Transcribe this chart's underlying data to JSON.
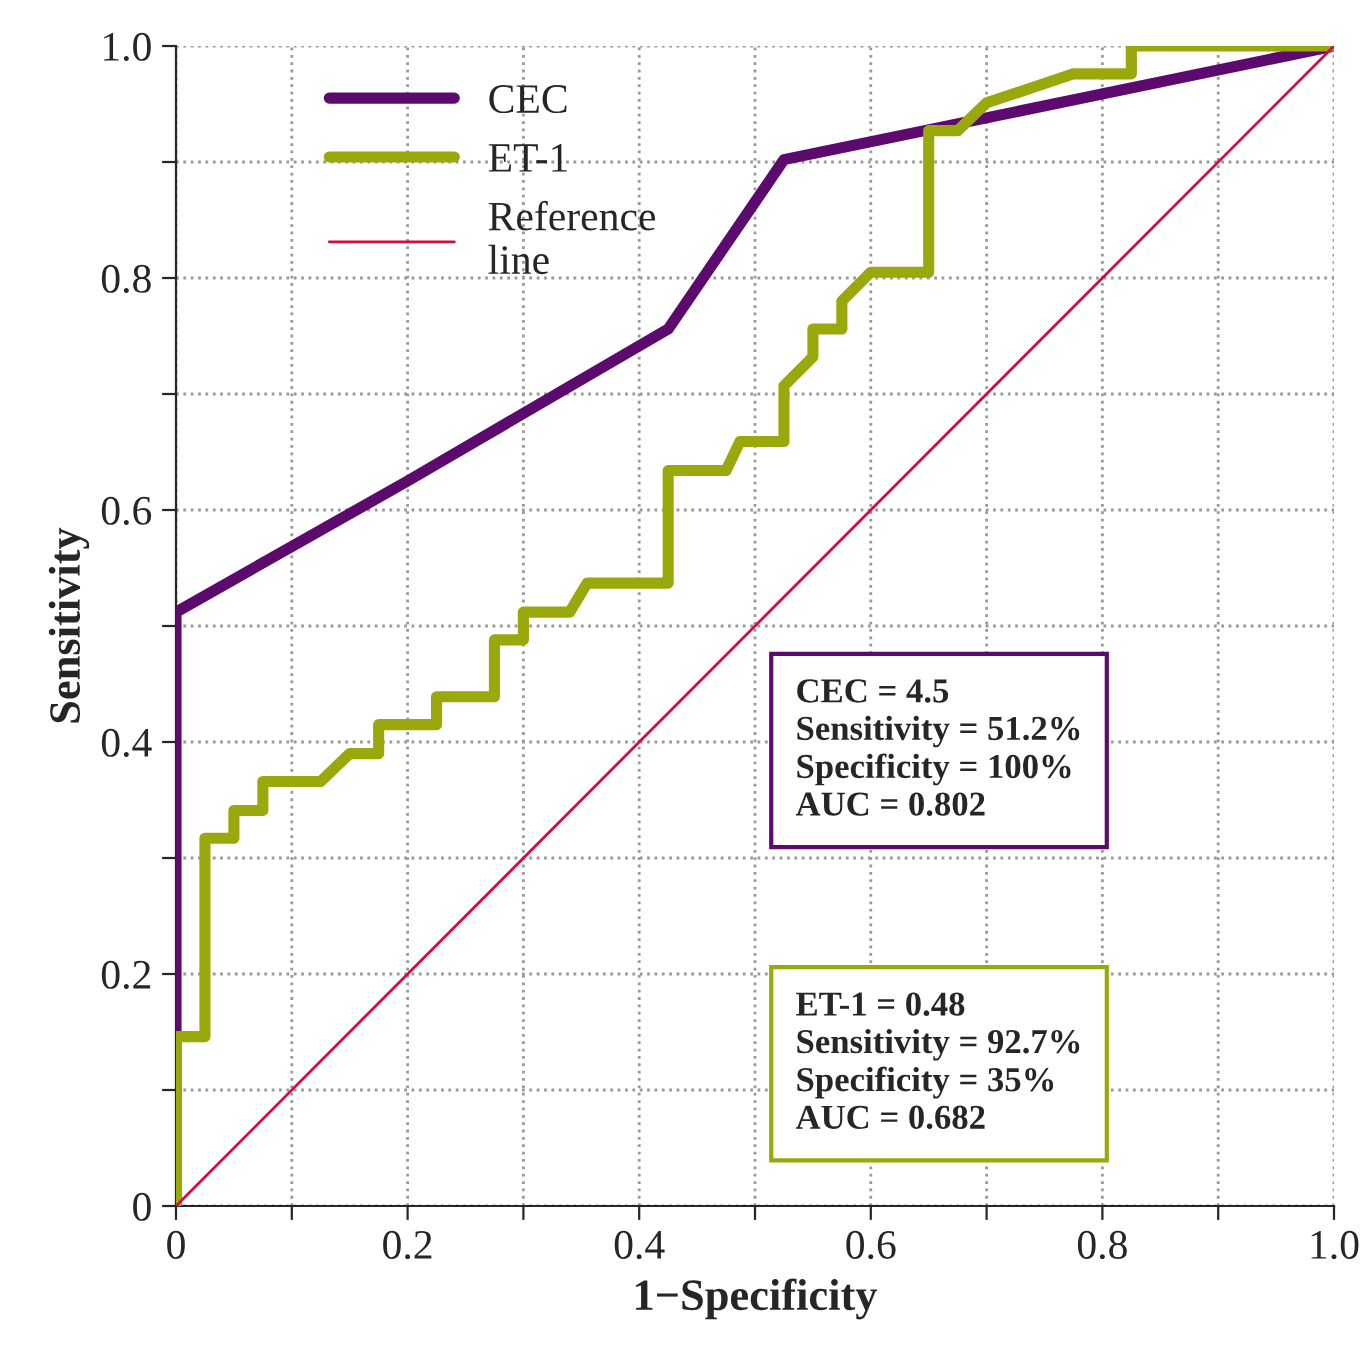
{
  "chart_data": {
    "type": "line",
    "xlabel": "1−Specificity",
    "ylabel": "Sensitivity",
    "xlim": [
      0,
      1
    ],
    "ylim": [
      0,
      1
    ],
    "xticks": [
      0,
      {
        "value": 0.1,
        "label": null
      },
      0.2,
      {
        "value": 0.3,
        "label": null
      },
      0.4,
      {
        "value": 0.5,
        "label": null
      },
      0.6,
      {
        "value": 0.7,
        "label": null
      },
      0.8,
      {
        "value": 0.9,
        "label": null
      },
      {
        "value": 1.0,
        "label": "1.0"
      }
    ],
    "yticks": [
      {
        "value": 0,
        "label": "0"
      },
      {
        "value": 0.1,
        "label": null
      },
      0.2,
      {
        "value": 0.3,
        "label": null
      },
      0.4,
      {
        "value": 0.5,
        "label": null
      },
      0.6,
      {
        "value": 0.7,
        "label": null
      },
      0.8,
      {
        "value": 0.9,
        "label": null
      },
      {
        "value": 1.0,
        "label": "1.0"
      }
    ],
    "grid": true,
    "legend": "top left",
    "line_style": "solid",
    "marker": "none",
    "series": [
      {
        "name": "CEC",
        "color": "#5c0a6e",
        "x": [
          0,
          0,
          0.2,
          0.425,
          0.525,
          1
        ],
        "values": [
          0,
          0.512,
          0.625,
          0.756,
          0.902,
          1
        ]
      },
      {
        "name": "ET-1",
        "color": "#99a80a",
        "x": [
          0,
          0,
          0.025,
          0.025,
          0.05,
          0.05,
          0.075,
          0.075,
          0.125,
          0.15,
          0.175,
          0.175,
          0.225,
          0.225,
          0.275,
          0.275,
          0.3,
          0.3,
          0.34,
          0.355,
          0.425,
          0.425,
          0.475,
          0.487,
          0.525,
          0.525,
          0.55,
          0.55,
          0.575,
          0.575,
          0.6,
          0.65,
          0.65,
          0.675,
          0.7,
          0.775,
          0.825,
          0.825,
          1
        ],
        "values": [
          0,
          0.146,
          0.146,
          0.317,
          0.317,
          0.341,
          0.341,
          0.366,
          0.366,
          0.39,
          0.39,
          0.415,
          0.415,
          0.439,
          0.439,
          0.488,
          0.488,
          0.512,
          0.512,
          0.537,
          0.537,
          0.634,
          0.634,
          0.659,
          0.659,
          0.707,
          0.732,
          0.756,
          0.756,
          0.78,
          0.805,
          0.805,
          0.927,
          0.927,
          0.951,
          0.976,
          0.976,
          1,
          1
        ]
      },
      {
        "name": "Reference\nline",
        "color": "#d0103a",
        "x": [
          0,
          1
        ],
        "values": [
          0,
          1
        ]
      }
    ],
    "annotations": [
      "CEC = 4.5\nSensitivity = 51.2%\nSpecificity = 100%\nAUC = 0.802",
      "ET-1 = 0.48\nSensitivity = 92.7%\nSpecificity = 35%\nAUC = 0.682"
    ]
  }
}
